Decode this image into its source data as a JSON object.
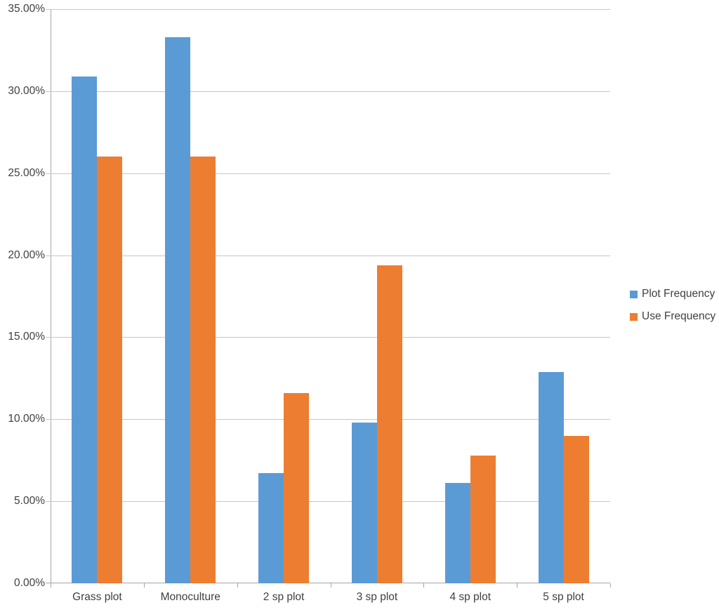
{
  "chart_data": {
    "type": "bar",
    "title": "",
    "xlabel": "",
    "ylabel": "",
    "categories": [
      "Grass plot",
      "Monoculture",
      "2 sp plot",
      "3 sp plot",
      "4 sp plot",
      "5 sp plot"
    ],
    "series": [
      {
        "name": "Plot Frequency",
        "color": "#5B9BD5",
        "values": [
          30.9,
          33.3,
          6.7,
          9.8,
          6.1,
          12.9
        ]
      },
      {
        "name": "Use Frequency",
        "color": "#ED7D31",
        "values": [
          26.0,
          26.0,
          11.6,
          19.4,
          7.8,
          9.0
        ]
      }
    ],
    "values_unit": "percent",
    "ylim": [
      0,
      35
    ],
    "ytick_step": 5,
    "ytick_labels": [
      "35.00%",
      "30.00%",
      "25.00%",
      "20.00%",
      "15.00%",
      "10.00%",
      "5.00%",
      "0.00%"
    ],
    "grid": true,
    "legend_position": "right-middle"
  },
  "colors": {
    "gridline": "#C6C6C6",
    "axis": "#A6A6A6",
    "text": "#404040",
    "background": "#FFFFFF",
    "series1": "#5B9BD5",
    "series2": "#ED7D31"
  }
}
